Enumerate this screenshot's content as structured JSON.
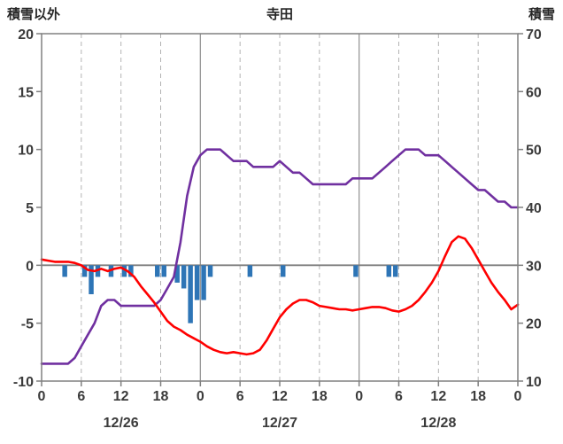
{
  "header": {
    "left_axis_title": "積雪以外",
    "chart_title": "寺田",
    "right_axis_title": "積雪"
  },
  "chart_data": {
    "type": "combo-line-bar",
    "title": "寺田",
    "x_axis": {
      "unit": "hour",
      "hours_max": 72,
      "tick_interval": 6,
      "tick_labels": [
        "0",
        "6",
        "12",
        "18",
        "0",
        "6",
        "12",
        "18",
        "0",
        "6",
        "12",
        "18",
        "0"
      ],
      "day_labels": [
        {
          "label": "12/26",
          "center_hour": 12
        },
        {
          "label": "12/27",
          "center_hour": 36
        },
        {
          "label": "12/28",
          "center_hour": 60
        }
      ]
    },
    "left_axis": {
      "title": "積雪以外",
      "max": 20,
      "min": -10,
      "tick_step": 5,
      "tick_labels": [
        "20",
        "15",
        "10",
        "5",
        "0",
        "-5",
        "-10"
      ]
    },
    "right_axis": {
      "title": "積雪",
      "max": 70,
      "min": 10,
      "tick_step": 10,
      "tick_labels": [
        "70",
        "60",
        "50",
        "40",
        "30",
        "20",
        "10"
      ]
    },
    "series": [
      {
        "id": "red_line",
        "axis": "left",
        "color": "#ff0000",
        "values": [
          0.5,
          0.4,
          0.3,
          0.3,
          0.3,
          0.2,
          0.0,
          -0.4,
          -0.5,
          -0.3,
          -0.5,
          -0.3,
          -0.2,
          -0.5,
          -1.0,
          -1.8,
          -2.5,
          -3.2,
          -4.0,
          -4.8,
          -5.3,
          -5.6,
          -6.0,
          -6.3,
          -6.6,
          -7.0,
          -7.3,
          -7.5,
          -7.6,
          -7.5,
          -7.6,
          -7.7,
          -7.6,
          -7.3,
          -6.5,
          -5.5,
          -4.5,
          -3.8,
          -3.3,
          -3.0,
          -3.0,
          -3.2,
          -3.5,
          -3.6,
          -3.7,
          -3.8,
          -3.8,
          -3.9,
          -3.8,
          -3.7,
          -3.6,
          -3.6,
          -3.7,
          -3.9,
          -4.0,
          -3.8,
          -3.5,
          -3.0,
          -2.3,
          -1.5,
          -0.5,
          0.8,
          2.0,
          2.5,
          2.3,
          1.5,
          0.5,
          -0.5,
          -1.5,
          -2.3,
          -3.0,
          -3.8,
          -3.4
        ]
      },
      {
        "id": "purple_line_snow_depth",
        "axis": "right",
        "color": "#7030a0",
        "values": [
          13,
          13,
          13,
          13,
          13,
          14,
          16,
          18,
          20,
          23,
          24,
          24,
          23,
          23,
          23,
          23,
          23,
          23,
          24,
          26,
          28,
          34,
          42,
          47,
          49,
          50,
          50,
          50,
          49,
          48,
          48,
          48,
          47,
          47,
          47,
          47,
          48,
          47,
          46,
          46,
          45,
          44,
          44,
          44,
          44,
          44,
          44,
          45,
          45,
          45,
          45,
          46,
          47,
          48,
          49,
          50,
          50,
          50,
          49,
          49,
          49,
          48,
          47,
          46,
          45,
          44,
          43,
          43,
          42,
          41,
          41,
          40,
          40
        ]
      }
    ],
    "bars": {
      "id": "blue_bars",
      "axis": "left",
      "color": "#2e75b6",
      "points": [
        {
          "hour": 3,
          "value": -1
        },
        {
          "hour": 6,
          "value": -1
        },
        {
          "hour": 7,
          "value": -2.5
        },
        {
          "hour": 8,
          "value": -1
        },
        {
          "hour": 10,
          "value": -1
        },
        {
          "hour": 12,
          "value": -1
        },
        {
          "hour": 13,
          "value": -1
        },
        {
          "hour": 17,
          "value": -1
        },
        {
          "hour": 18,
          "value": -1
        },
        {
          "hour": 20,
          "value": -1.5
        },
        {
          "hour": 21,
          "value": -2
        },
        {
          "hour": 22,
          "value": -5
        },
        {
          "hour": 23,
          "value": -3
        },
        {
          "hour": 24,
          "value": -3
        },
        {
          "hour": 25,
          "value": -1
        },
        {
          "hour": 31,
          "value": -1
        },
        {
          "hour": 36,
          "value": -1
        },
        {
          "hour": 47,
          "value": -1
        },
        {
          "hour": 52,
          "value": -1
        },
        {
          "hour": 53,
          "value": -1
        }
      ]
    },
    "grid": {
      "vertical_dashed": true,
      "horizontal": false,
      "zero_line": 0
    },
    "colors": {
      "plot_border": "#808080",
      "gridline_dashed": "#b3b3b3",
      "gridline_day_solid": "#999999",
      "zero_line": "#808080",
      "tick": "#808080",
      "text": "#3b3b3b"
    },
    "legend": "none"
  }
}
